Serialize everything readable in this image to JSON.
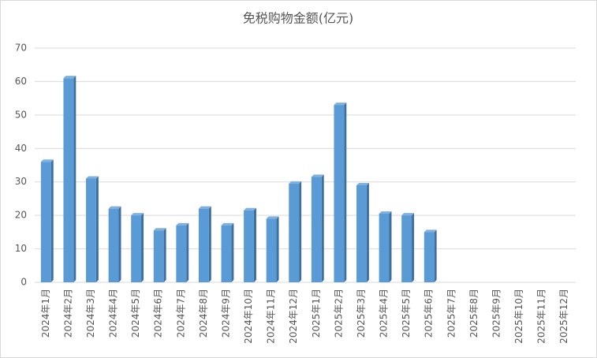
{
  "chart_data": {
    "type": "bar",
    "title": "免税购物金额(亿元)",
    "categories": [
      "2024年1月",
      "2024年2月",
      "2024年3月",
      "2024年4月",
      "2024年5月",
      "2024年6月",
      "2024年7月",
      "2024年8月",
      "2024年9月",
      "2024年10月",
      "2024年11月",
      "2024年12月",
      "2025年1月",
      "2025年2月",
      "2025年3月",
      "2025年4月",
      "2025年5月",
      "2025年6月",
      "2025年7月",
      "2025年8月",
      "2025年9月",
      "2025年10月",
      "2025年11月",
      "2025年12月"
    ],
    "values": [
      36,
      61,
      31,
      22,
      20,
      15.5,
      17,
      22,
      17,
      21.5,
      19,
      29.5,
      31.5,
      53,
      29,
      20.5,
      20,
      15,
      null,
      null,
      null,
      null,
      null,
      null
    ],
    "color": "#5b9bd5",
    "ylim": [
      0,
      70
    ],
    "yticks": [
      0,
      10,
      20,
      30,
      40,
      50,
      60,
      70
    ],
    "grid": true
  }
}
